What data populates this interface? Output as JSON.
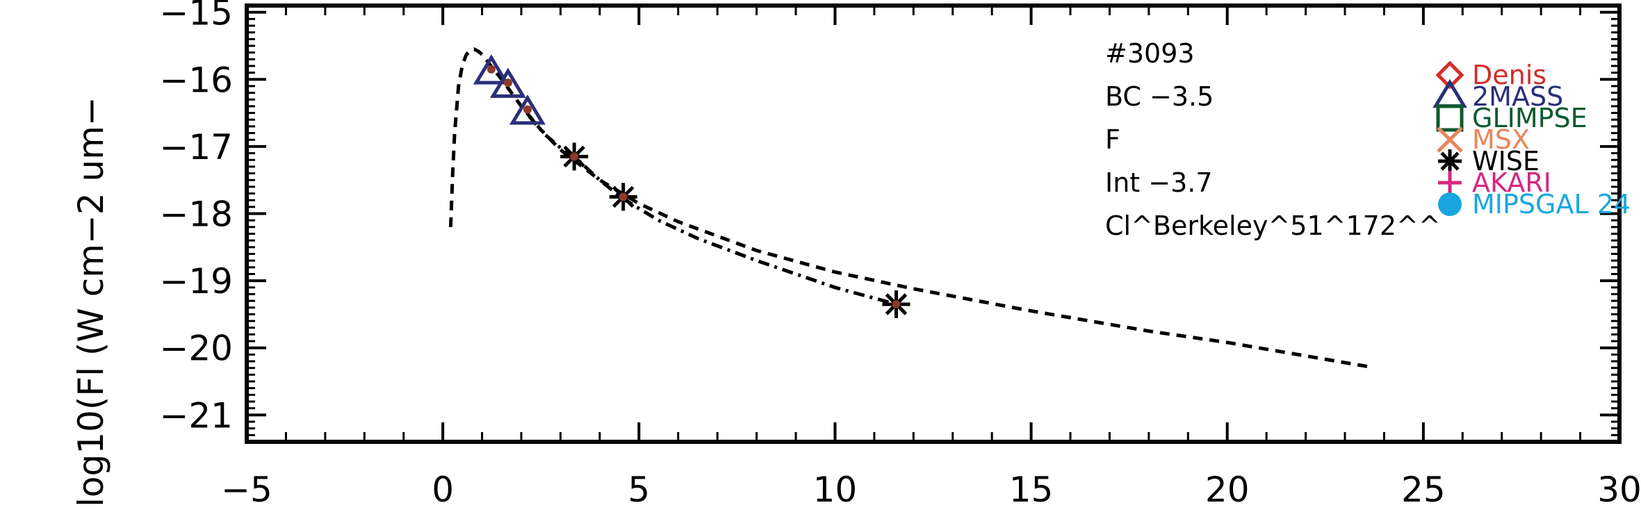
{
  "chart_data": {
    "type": "scatter",
    "title": "",
    "xlabel": "",
    "ylabel": "log10(Fl (W cm−2 um−",
    "xlim": [
      -5,
      30
    ],
    "ylim": [
      -21.4,
      -14.9
    ],
    "xticks": [
      -5,
      0,
      5,
      10,
      15,
      20,
      25,
      30
    ],
    "xtick_labels": [
      "−5",
      "0",
      "5",
      "10",
      "15",
      "20",
      "25",
      "30"
    ],
    "yticks": [
      -21,
      -20,
      -19,
      -18,
      -17,
      -16,
      -15
    ],
    "ytick_labels": [
      "−21",
      "−20",
      "−19",
      "−18",
      "−17",
      "−16",
      "−15"
    ],
    "annotations": [
      "#3093",
      "BC −3.5",
      "F",
      "Int −3.7",
      "Cl^Berkeley^51^172^^"
    ],
    "legend": {
      "placement": "right",
      "entries": [
        {
          "label": "Denis",
          "symbol": "diamond",
          "color": "#d42c2c"
        },
        {
          "label": "2MASS",
          "symbol": "triangle",
          "color": "#2a2f7a"
        },
        {
          "label": "GLIMPSE",
          "symbol": "square",
          "color": "#0e5a2e"
        },
        {
          "label": "MSX",
          "symbol": "x",
          "color": "#e8865a"
        },
        {
          "label": "WISE",
          "symbol": "asterisk",
          "color": "#000000"
        },
        {
          "label": "AKARI",
          "symbol": "plus",
          "color": "#d6277f"
        },
        {
          "label": "MIPSGAL 24",
          "symbol": "circle",
          "color": "#19a6e0"
        }
      ]
    },
    "series": [
      {
        "label": "2MASS",
        "symbol": "triangle",
        "color": "#2a2f7a",
        "x": [
          1.235,
          1.662,
          2.159
        ],
        "y": [
          -15.9,
          -16.1,
          -16.5
        ]
      },
      {
        "label": "WISE",
        "symbol": "asterisk",
        "color": "#000000",
        "x": [
          3.35,
          4.6,
          11.56
        ],
        "y": [
          -17.15,
          -17.75,
          -19.35
        ]
      },
      {
        "label": "observed",
        "symbol": "dot",
        "color": "#8b3a2a",
        "x": [
          1.235,
          1.662,
          2.159,
          3.35,
          4.6,
          11.56
        ],
        "y": [
          -15.85,
          -16.05,
          -16.45,
          -17.15,
          -17.75,
          -19.35
        ]
      }
    ],
    "curves": [
      {
        "style": "dashed",
        "x": [
          0.2,
          0.25,
          0.3,
          0.4,
          0.5,
          0.6,
          0.7,
          0.8,
          0.9,
          1.0,
          1.2,
          1.5,
          2.0,
          2.5,
          3.0,
          4.0,
          5.0,
          6.0,
          8.0,
          10.0,
          12.0,
          15.0,
          18.0,
          20.0,
          23.6
        ],
        "y": [
          -18.2,
          -17.4,
          -16.8,
          -16.1,
          -15.78,
          -15.63,
          -15.57,
          -15.55,
          -15.58,
          -15.63,
          -15.78,
          -16.0,
          -16.4,
          -16.75,
          -17.05,
          -17.5,
          -17.85,
          -18.12,
          -18.55,
          -18.87,
          -19.12,
          -19.45,
          -19.75,
          -19.92,
          -20.28
        ]
      },
      {
        "style": "dashdot",
        "x": [
          2.2,
          2.6,
          3.0,
          3.35,
          4.0,
          4.6,
          5.5,
          6.5,
          8.0,
          10.0,
          11.56
        ],
        "y": [
          -16.55,
          -16.82,
          -17.02,
          -17.15,
          -17.5,
          -17.78,
          -18.1,
          -18.37,
          -18.7,
          -19.1,
          -19.35
        ]
      }
    ]
  }
}
